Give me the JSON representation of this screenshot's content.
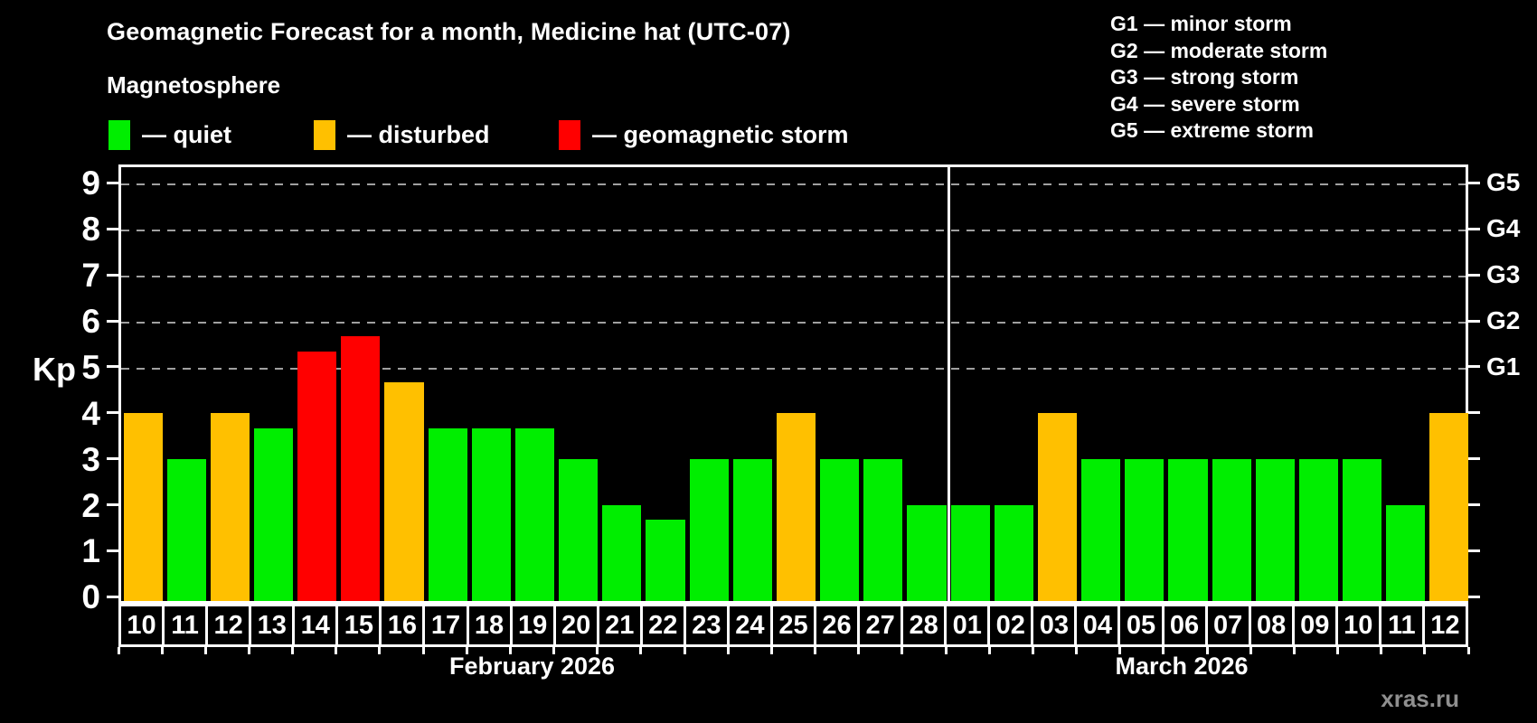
{
  "header": {
    "title": "Geomagnetic Forecast for a month, Medicine hat (UTC-07)",
    "subtitle": "Magnetosphere",
    "legend": [
      {
        "name": "quiet",
        "label": "— quiet",
        "color": "#00ee00"
      },
      {
        "name": "disturbed",
        "label": "— disturbed",
        "color": "#ffc000"
      },
      {
        "name": "storm",
        "label": "— geomagnetic storm",
        "color": "#ff0000"
      }
    ],
    "g_scale": [
      "G1 — minor storm",
      "G2 — moderate storm",
      "G3 — strong storm",
      "G4 — severe storm",
      "G5 — extreme storm"
    ]
  },
  "chart_data": {
    "type": "bar",
    "title": "Geomagnetic Forecast for a month, Medicine hat (UTC-07)",
    "ylabel": "Kp",
    "ylim": [
      0,
      9.5
    ],
    "yticks": [
      0,
      1,
      2,
      3,
      4,
      5,
      6,
      7,
      8,
      9
    ],
    "grid_on": true,
    "grid_kp_levels": [
      5,
      6,
      7,
      8,
      9
    ],
    "right_axis_labels": [
      {
        "kp": 5,
        "label": "G1"
      },
      {
        "kp": 6,
        "label": "G2"
      },
      {
        "kp": 7,
        "label": "G3"
      },
      {
        "kp": 8,
        "label": "G4"
      },
      {
        "kp": 9,
        "label": "G5"
      }
    ],
    "colors": {
      "quiet": "#00ee00",
      "disturbed": "#ffc000",
      "storm": "#ff0000",
      "axis": "#ffffff",
      "grid": "#a0a0a0"
    },
    "months": [
      {
        "label": "February 2026",
        "day_count": 19
      },
      {
        "label": "March 2026",
        "day_count": 12
      }
    ],
    "bars": [
      {
        "day": "10",
        "kp": 4.0,
        "status": "disturbed"
      },
      {
        "day": "11",
        "kp": 3.0,
        "status": "quiet"
      },
      {
        "day": "12",
        "kp": 4.0,
        "status": "disturbed"
      },
      {
        "day": "13",
        "kp": 3.67,
        "status": "quiet"
      },
      {
        "day": "14",
        "kp": 5.33,
        "status": "storm"
      },
      {
        "day": "15",
        "kp": 5.67,
        "status": "storm"
      },
      {
        "day": "16",
        "kp": 4.67,
        "status": "disturbed"
      },
      {
        "day": "17",
        "kp": 3.67,
        "status": "quiet"
      },
      {
        "day": "18",
        "kp": 3.67,
        "status": "quiet"
      },
      {
        "day": "19",
        "kp": 3.67,
        "status": "quiet"
      },
      {
        "day": "20",
        "kp": 3.0,
        "status": "quiet"
      },
      {
        "day": "21",
        "kp": 2.0,
        "status": "quiet"
      },
      {
        "day": "22",
        "kp": 1.67,
        "status": "quiet"
      },
      {
        "day": "23",
        "kp": 3.0,
        "status": "quiet"
      },
      {
        "day": "24",
        "kp": 3.0,
        "status": "quiet"
      },
      {
        "day": "25",
        "kp": 4.0,
        "status": "disturbed"
      },
      {
        "day": "26",
        "kp": 3.0,
        "status": "quiet"
      },
      {
        "day": "27",
        "kp": 3.0,
        "status": "quiet"
      },
      {
        "day": "28",
        "kp": 2.0,
        "status": "quiet"
      },
      {
        "day": "01",
        "kp": 2.0,
        "status": "quiet"
      },
      {
        "day": "02",
        "kp": 2.0,
        "status": "quiet"
      },
      {
        "day": "03",
        "kp": 4.0,
        "status": "disturbed"
      },
      {
        "day": "04",
        "kp": 3.0,
        "status": "quiet"
      },
      {
        "day": "05",
        "kp": 3.0,
        "status": "quiet"
      },
      {
        "day": "06",
        "kp": 3.0,
        "status": "quiet"
      },
      {
        "day": "07",
        "kp": 3.0,
        "status": "quiet"
      },
      {
        "day": "08",
        "kp": 3.0,
        "status": "quiet"
      },
      {
        "day": "09",
        "kp": 3.0,
        "status": "quiet"
      },
      {
        "day": "10",
        "kp": 3.0,
        "status": "quiet"
      },
      {
        "day": "11",
        "kp": 2.0,
        "status": "quiet"
      },
      {
        "day": "12",
        "kp": 4.0,
        "status": "disturbed"
      }
    ]
  },
  "footer": {
    "watermark": "xras.ru"
  }
}
